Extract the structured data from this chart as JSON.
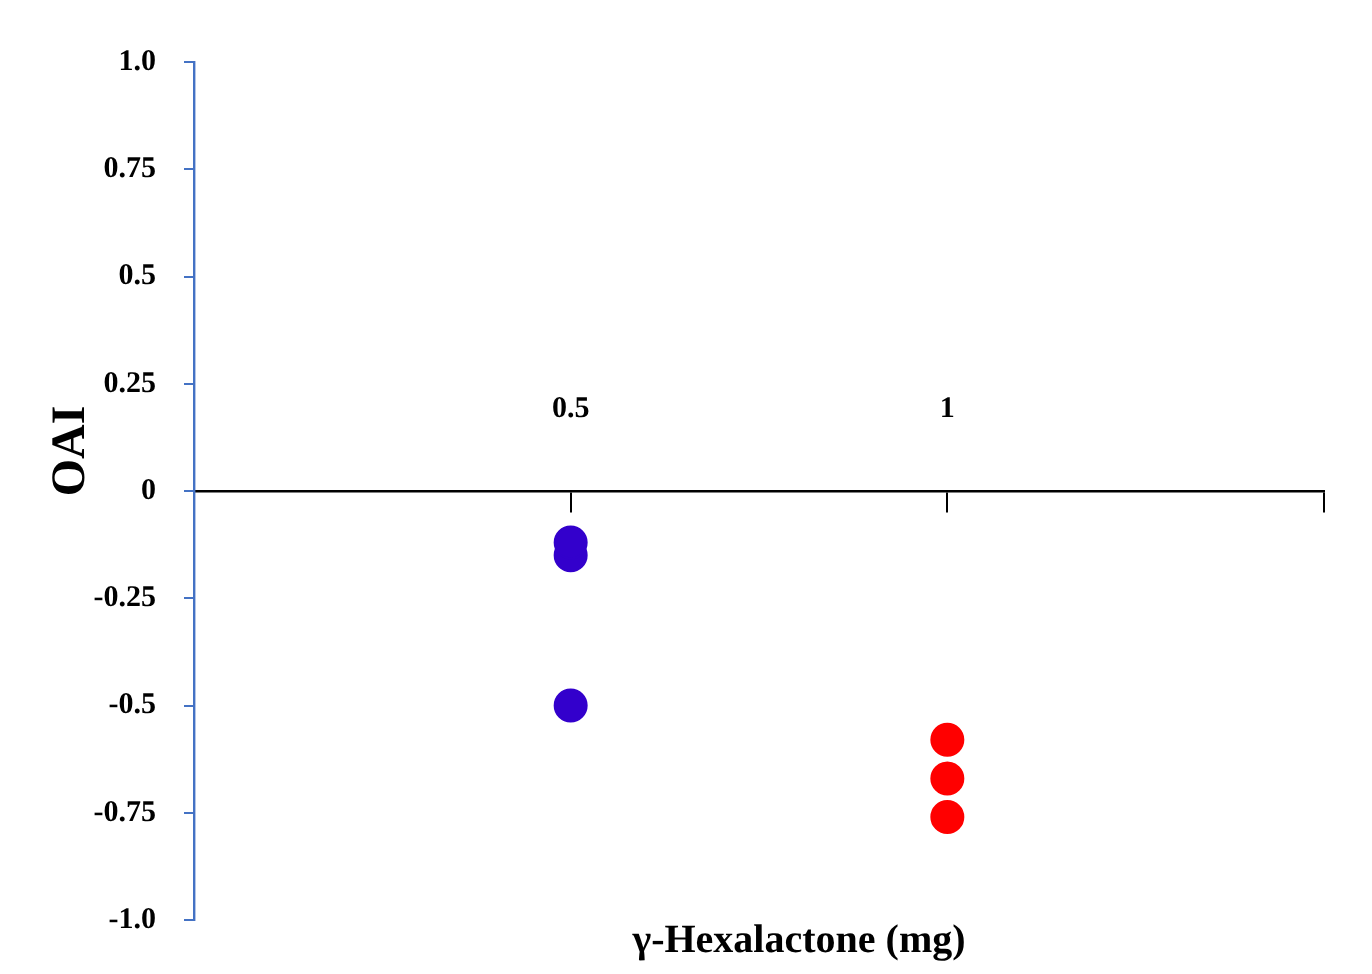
{
  "chart_data": {
    "type": "scatter",
    "ylabel": "OAI",
    "xlabel": "γ-Hexalactone (mg)",
    "x": [
      0.5,
      1
    ],
    "series": [
      {
        "colors": [
          "#3300cc",
          "#ff0000"
        ],
        "values": [
          -0.12,
          -0.58
        ]
      },
      {
        "colors": [
          "#3300cc",
          "#ff0000"
        ],
        "values": [
          -0.15,
          -0.67
        ]
      },
      {
        "colors": [
          "#3300cc",
          "#ff0000"
        ],
        "values": [
          -0.5,
          -0.76
        ]
      }
    ],
    "xlim": [
      0,
      1.5
    ],
    "xticks": [
      {
        "value": 0,
        "label": null
      },
      0.5,
      1,
      {
        "value": 1.5,
        "label": null
      }
    ],
    "ylim": [
      -1,
      1
    ],
    "yticks": [
      {
        "value": -1,
        "label": "-1.0"
      },
      -0.75,
      -0.5,
      -0.25,
      0,
      0.25,
      0.5,
      0.75,
      {
        "value": 1,
        "label": "1.0"
      }
    ],
    "marker": "circle"
  }
}
